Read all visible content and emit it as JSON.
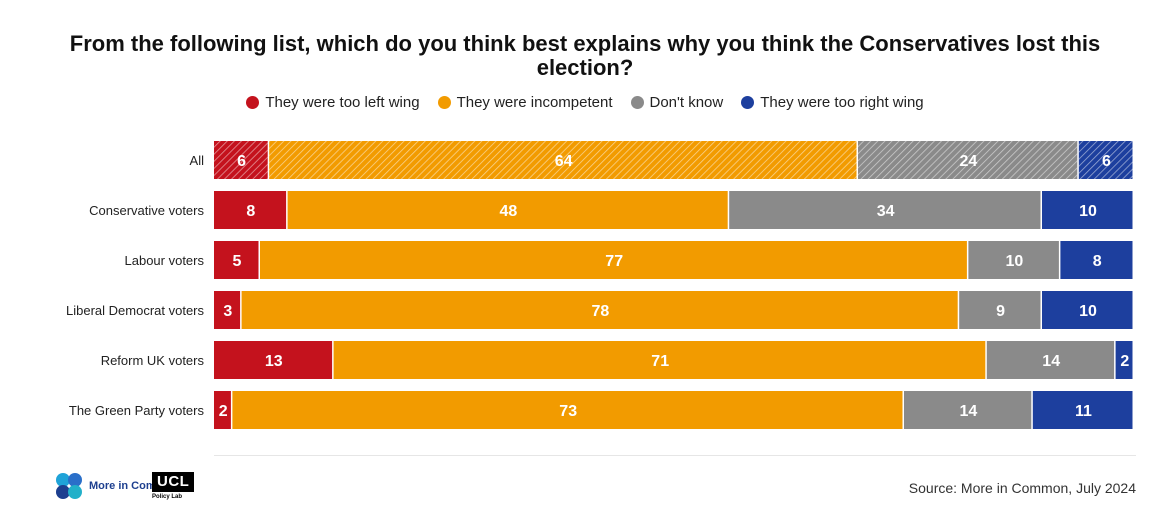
{
  "chart_data": {
    "type": "bar",
    "orientation": "horizontal",
    "stacked": true,
    "title": "From the following list, which do you think best explains why you think the Conservatives lost this election?",
    "categories": [
      "All",
      "Conservative voters",
      "Labour voters",
      "Liberal Democrat voters",
      "Reform UK voters",
      "The Green Party voters"
    ],
    "series": [
      {
        "name": "They were too left wing",
        "color": "#c4121d",
        "values": [
          6,
          8,
          5,
          3,
          13,
          2
        ]
      },
      {
        "name": "They were incompetent",
        "color": "#f29b00",
        "values": [
          64,
          48,
          77,
          78,
          71,
          73
        ]
      },
      {
        "name": "Don't know",
        "color": "#8a8a8a",
        "values": [
          24,
          34,
          10,
          9,
          14,
          14
        ]
      },
      {
        "name": "They were too right wing",
        "color": "#1d3f9e",
        "values": [
          6,
          10,
          8,
          10,
          2,
          11
        ]
      }
    ],
    "hatched_categories": [
      "All"
    ],
    "xlim": [
      0,
      100
    ],
    "legend_position": "top"
  },
  "footer": {
    "source": "Source: More in Common, July 2024",
    "logo_more_in_common": "More in Common",
    "logo_ucl": "UCL",
    "logo_ucl_sub": "Policy Lab"
  },
  "colors": {
    "mic_brand": "#1d3f8f"
  }
}
